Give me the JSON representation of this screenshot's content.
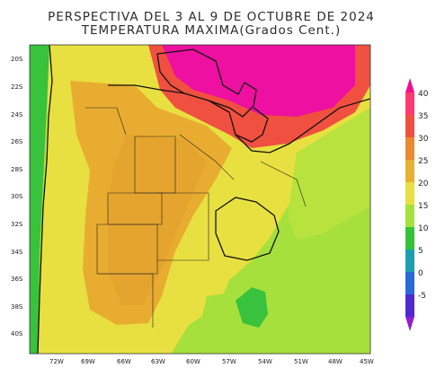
{
  "header": {
    "title": "PERSPECTIVA DEL 3 AL 9 DE OCTUBRE DE 2024",
    "subtitle": "TEMPERATURA MAXIMA(Grados Cent.)"
  },
  "axes": {
    "lat_labels": [
      "20S",
      "22S",
      "24S",
      "26S",
      "28S",
      "30S",
      "32S",
      "34S",
      "36S",
      "38S",
      "40S"
    ],
    "lon_labels": [
      "72W",
      "69W",
      "66W",
      "63W",
      "60W",
      "57W",
      "54W",
      "51W",
      "48W",
      "45W"
    ]
  },
  "colorbar": {
    "labels": [
      "40",
      "35",
      "30",
      "25",
      "20",
      "15",
      "10",
      "5",
      "0",
      "-5"
    ],
    "colors": [
      "#ff3a70",
      "#f05040",
      "#e88a30",
      "#e8b032",
      "#e8e040",
      "#a6e03c",
      "#33c23a",
      "#1aa0b0",
      "#2a6ad8",
      "#5028d0"
    ],
    "top_arrow_color": "#ee1090",
    "bottom_arrow_color": "#9020d0"
  },
  "colors": {
    "ocean": "#9be646",
    "coast_green": "#3cc040",
    "magenta": "#ee10a0"
  }
}
